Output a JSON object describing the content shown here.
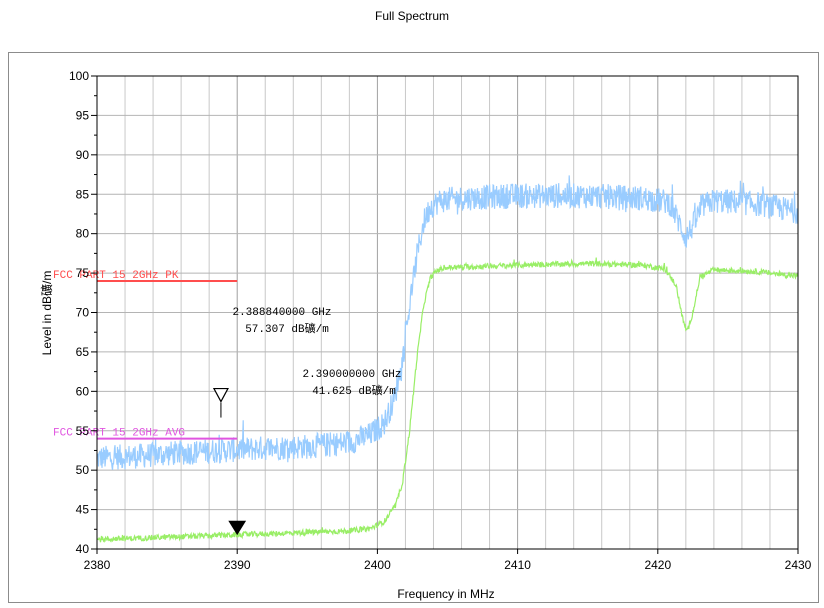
{
  "chart_data": {
    "type": "line",
    "title": "Full Spectrum",
    "xlabel": "Frequency in MHz",
    "ylabel": "Level in dB礦/m",
    "xlim": [
      2380,
      2430
    ],
    "ylim": [
      40,
      100
    ],
    "x_ticks": [
      "2380",
      "2390",
      "2400",
      "2410",
      "2420",
      "2430"
    ],
    "y_ticks": [
      "40",
      "45",
      "50",
      "55",
      "60",
      "65",
      "70",
      "75",
      "80",
      "85",
      "90",
      "95",
      "100"
    ],
    "grid": true,
    "series": [
      {
        "color": "#99ccff",
        "noise": 1.6,
        "x": [
          2380,
          2383,
          2386,
          2389,
          2392,
          2395,
          2398,
          2399.5,
          2400.5,
          2401.2,
          2401.8,
          2402.3,
          2402.8,
          2403.3,
          2403.8,
          2404.5,
          2406,
          2410,
          2415,
          2419,
          2420.8,
          2421.5,
          2422,
          2422.5,
          2423.2,
          2424,
          2427,
          2430
        ],
        "y": [
          51.5,
          51.8,
          52.2,
          52.5,
          52.8,
          53.0,
          53.5,
          54.5,
          56,
          59,
          64,
          71,
          77,
          81.5,
          83.5,
          84.2,
          84.5,
          84.8,
          84.8,
          84.5,
          84.0,
          81.5,
          79.5,
          81.0,
          83.5,
          84.2,
          83.8,
          82.8
        ]
      },
      {
        "color": "#99ee66",
        "noise": 0.35,
        "x": [
          2380,
          2385,
          2390,
          2395,
          2398,
          2399.5,
          2400.5,
          2401.3,
          2401.8,
          2402.3,
          2402.8,
          2403.3,
          2403.8,
          2404.3,
          2405,
          2410,
          2415,
          2419,
          2420.5,
          2421.3,
          2421.8,
          2422.1,
          2422.5,
          2423,
          2424,
          2427,
          2430
        ],
        "y": [
          41.2,
          41.5,
          41.8,
          42.1,
          42.3,
          42.6,
          43.5,
          45.5,
          48.5,
          55,
          64,
          71,
          74.5,
          75.4,
          75.7,
          76.0,
          76.2,
          76.0,
          75.5,
          73.5,
          69,
          67.5,
          70,
          74.5,
          75.4,
          75.2,
          74.6
        ]
      }
    ],
    "limit_lines": [
      {
        "label": "FCC PART 15 2GHz  PK",
        "y": 74,
        "x_start": 2380,
        "x_end": 2390,
        "color": "#ff4d4d"
      },
      {
        "label": "FCC PART 15 2GHz  AVG",
        "y": 54,
        "x_start": 2380,
        "x_end": 2390,
        "color": "#e055e0"
      }
    ],
    "markers": [
      {
        "freq_label": "2.388840000 GHz",
        "level_label": "57.307 dB礦/m",
        "x": 2388.84,
        "y": 57.307,
        "style": "open"
      },
      {
        "freq_label": "2.390000000 GHz",
        "level_label": "41.625 dB礦/m",
        "x": 2390.0,
        "y": 41.625,
        "style": "filled"
      }
    ]
  }
}
